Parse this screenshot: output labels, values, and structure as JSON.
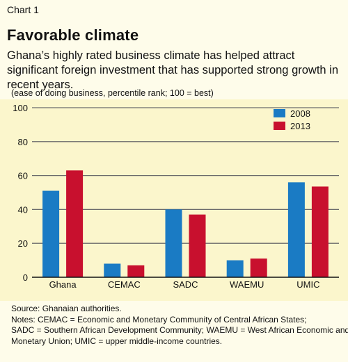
{
  "chart_label": "Chart 1",
  "title": "Favorable climate",
  "subtitle": "Ghana’s highly rated business climate has helped attract significant foreign investment that has supported strong growth in recent years.",
  "unit_note": "(ease of doing business, percentile rank; 100 = best)",
  "source": "Source: Ghanaian authorities.",
  "notes": [
    "Notes: CEMAC = Economic and Monetary Community of Central African States;",
    "SADC = Southern African Development Community; WAEMU = West African Economic and",
    "Monetary Union; UMIC = upper middle-income countries."
  ],
  "colors": {
    "2008": "#1a7bc4",
    "2013": "#c8102e",
    "background": "#fefcea",
    "plot_background": "#fbf6cc"
  },
  "chart_data": {
    "type": "bar",
    "categories": [
      "Ghana",
      "CEMAC",
      "SADC",
      "WAEMU",
      "UMIC"
    ],
    "series": [
      {
        "name": "2008",
        "values": [
          51,
          8,
          40,
          10,
          56
        ]
      },
      {
        "name": "2013",
        "values": [
          63,
          7,
          37,
          11,
          53.5
        ]
      }
    ],
    "ylim": [
      0,
      100
    ],
    "yticks": [
      0,
      20,
      40,
      60,
      80,
      100
    ],
    "grid": true,
    "legend_position": "top-right"
  }
}
